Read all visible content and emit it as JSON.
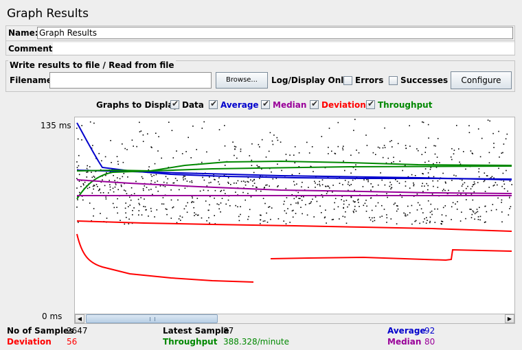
{
  "window": {
    "title": "Graph Results"
  },
  "form": {
    "name_label": "Name:",
    "name_value": "Graph Results",
    "comments_label": "Comments:"
  },
  "file_panel": {
    "legend": "Write results to file / Read from file",
    "filename_label": "Filename",
    "filename_value": "",
    "browse_label": "Browse...",
    "log_display_label": "Log/Display Only:",
    "errors_label": "Errors",
    "errors_checked": false,
    "successes_label": "Successes",
    "successes_checked": false,
    "configure_label": "Configure"
  },
  "graphs_to_display": {
    "label": "Graphs to Display",
    "options": [
      {
        "label": "Data",
        "checked": true,
        "color": "#000000"
      },
      {
        "label": "Average",
        "checked": true,
        "color": "#0000cc"
      },
      {
        "label": "Median",
        "checked": true,
        "color": "#990099"
      },
      {
        "label": "Deviation",
        "checked": true,
        "color": "#ff0000"
      },
      {
        "label": "Throughput",
        "checked": true,
        "color": "#008800"
      }
    ]
  },
  "chart_data": {
    "type": "scatter",
    "y_max_label": "135 ms",
    "y_min_label": "0 ms",
    "ylim": [
      0,
      135
    ],
    "series": [
      {
        "name": "Data",
        "color": "#000000"
      },
      {
        "name": "Average",
        "color": "#0000cc"
      },
      {
        "name": "Median",
        "color": "#990099"
      },
      {
        "name": "Deviation",
        "color": "#ff0000"
      },
      {
        "name": "Throughput",
        "color": "#008800"
      }
    ]
  },
  "stats": {
    "samples_label": "No of Samples",
    "samples_value": "2647",
    "deviation_label": "Deviation",
    "deviation_value": "56",
    "latest_label": "Latest Sample",
    "latest_value": "87",
    "throughput_label": "Throughput",
    "throughput_value": "388.328/minute",
    "average_label": "Average",
    "average_value": "92",
    "median_label": "Median",
    "median_value": "80"
  },
  "colors": {
    "data": "#000000",
    "average": "#0000cc",
    "median": "#990099",
    "deviation": "#ff0000",
    "throughput": "#008800"
  }
}
